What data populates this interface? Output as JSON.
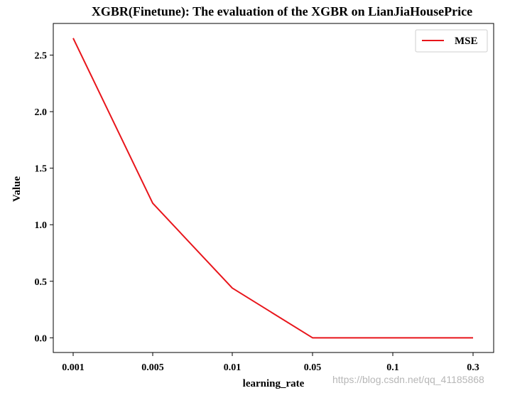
{
  "chart_data": {
    "type": "line",
    "title": "XGBR(Finetune): The evaluation of the XGBR on LianJiaHousePrice",
    "xlabel": "learning_rate",
    "ylabel": "Value",
    "categories": [
      "0.001",
      "0.005",
      "0.01",
      "0.05",
      "0.1",
      "0.3"
    ],
    "series": [
      {
        "name": "MSE",
        "values": [
          2.65,
          1.19,
          0.44,
          0.0,
          0.0,
          0.0
        ],
        "color": "#e8151b"
      }
    ],
    "y_ticks": [
      "0.0",
      "0.5",
      "1.0",
      "1.5",
      "2.0",
      "2.5"
    ],
    "ylim": [
      -0.13,
      2.78
    ],
    "grid": false,
    "legend": "top-right"
  },
  "watermark": "https://blog.csdn.net/qq_41185868"
}
